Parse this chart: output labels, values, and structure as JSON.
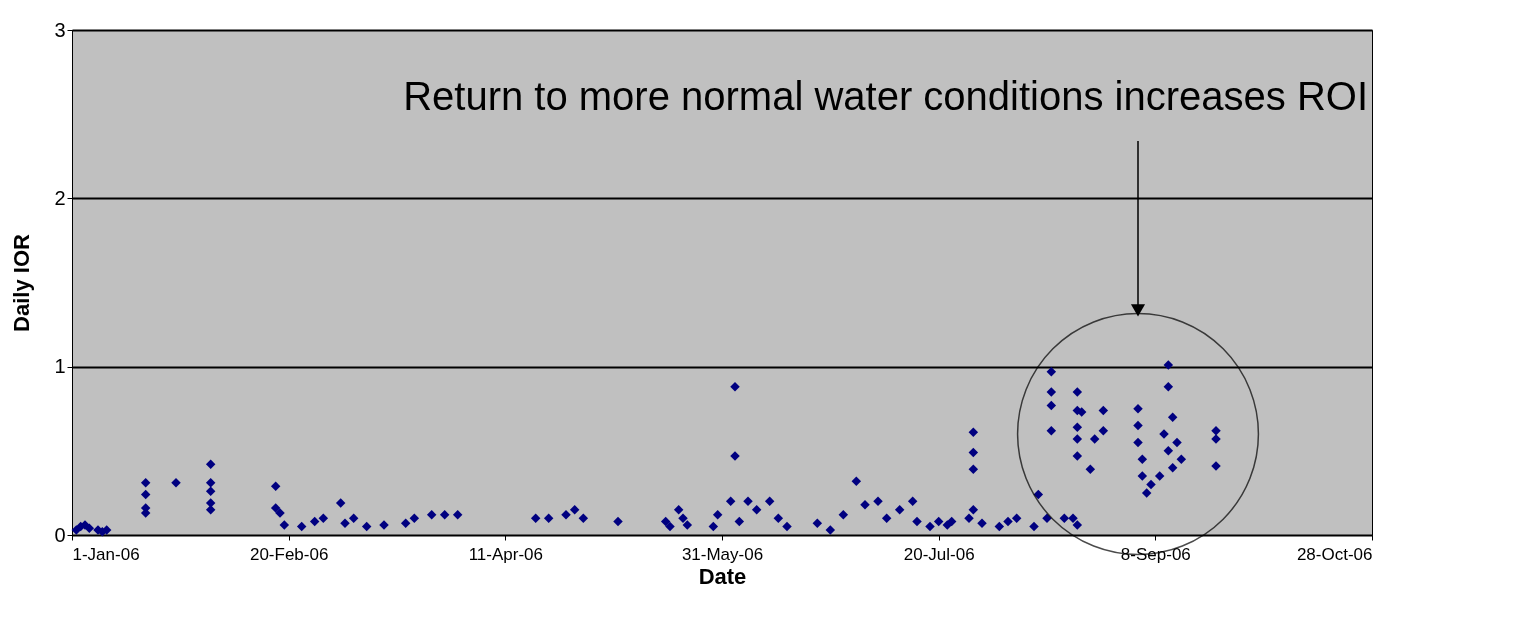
{
  "chart_data": {
    "type": "scatter",
    "xlabel": "Date",
    "ylabel": "Daily IOR",
    "x": [
      "2006-01-02",
      "2006-01-03",
      "2006-01-04",
      "2006-01-05",
      "2006-01-07",
      "2006-01-08",
      "2006-01-09",
      "2006-01-18",
      "2006-01-18",
      "2006-01-18",
      "2006-01-18",
      "2006-01-25",
      "2006-02-02",
      "2006-02-02",
      "2006-02-02",
      "2006-02-02",
      "2006-02-02",
      "2006-02-17",
      "2006-02-17",
      "2006-02-18",
      "2006-02-19",
      "2006-02-23",
      "2006-02-26",
      "2006-02-28",
      "2006-03-04",
      "2006-03-05",
      "2006-03-07",
      "2006-03-10",
      "2006-03-14",
      "2006-03-19",
      "2006-03-21",
      "2006-03-25",
      "2006-03-28",
      "2006-03-31",
      "2006-04-18",
      "2006-04-21",
      "2006-04-25",
      "2006-04-27",
      "2006-04-29",
      "2006-05-07",
      "2006-05-18",
      "2006-05-19",
      "2006-05-21",
      "2006-05-22",
      "2006-05-23",
      "2006-05-29",
      "2006-05-30",
      "2006-06-02",
      "2006-06-03",
      "2006-06-03",
      "2006-06-04",
      "2006-06-06",
      "2006-06-08",
      "2006-06-11",
      "2006-06-13",
      "2006-06-15",
      "2006-06-22",
      "2006-06-25",
      "2006-06-28",
      "2006-07-01",
      "2006-07-03",
      "2006-07-06",
      "2006-07-08",
      "2006-07-11",
      "2006-07-14",
      "2006-07-15",
      "2006-07-18",
      "2006-07-20",
      "2006-07-22",
      "2006-07-23",
      "2006-07-27",
      "2006-07-28",
      "2006-07-28",
      "2006-07-28",
      "2006-07-28",
      "2006-07-30",
      "2006-08-03",
      "2006-08-05",
      "2006-08-07",
      "2006-08-11",
      "2006-08-12",
      "2006-08-14",
      "2006-08-15",
      "2006-08-15",
      "2006-08-15",
      "2006-08-15",
      "2006-08-18",
      "2006-08-20",
      "2006-08-21",
      "2006-08-21",
      "2006-08-21",
      "2006-08-21",
      "2006-08-21",
      "2006-08-21",
      "2006-08-22",
      "2006-08-24",
      "2006-08-25",
      "2006-08-27",
      "2006-08-27",
      "2006-09-04",
      "2006-09-04",
      "2006-09-04",
      "2006-09-05",
      "2006-09-05",
      "2006-09-06",
      "2006-09-07",
      "2006-09-09",
      "2006-09-10",
      "2006-09-11",
      "2006-09-11",
      "2006-09-11",
      "2006-09-12",
      "2006-09-12",
      "2006-09-13",
      "2006-09-14",
      "2006-09-22",
      "2006-09-22",
      "2006-09-22"
    ],
    "series": [
      {
        "color": "#000080",
        "values": [
          0.03,
          0.05,
          0.06,
          0.04,
          0.03,
          0.02,
          0.03,
          0.31,
          0.24,
          0.16,
          0.13,
          0.31,
          0.42,
          0.31,
          0.26,
          0.19,
          0.15,
          0.29,
          0.16,
          0.13,
          0.06,
          0.05,
          0.08,
          0.1,
          0.19,
          0.07,
          0.1,
          0.05,
          0.06,
          0.07,
          0.1,
          0.12,
          0.12,
          0.12,
          0.1,
          0.1,
          0.12,
          0.15,
          0.1,
          0.08,
          0.08,
          0.05,
          0.15,
          0.1,
          0.06,
          0.05,
          0.12,
          0.2,
          0.88,
          0.47,
          0.08,
          0.2,
          0.15,
          0.2,
          0.1,
          0.05,
          0.07,
          0.03,
          0.12,
          0.32,
          0.18,
          0.2,
          0.1,
          0.15,
          0.2,
          0.08,
          0.05,
          0.08,
          0.06,
          0.08,
          0.1,
          0.61,
          0.49,
          0.39,
          0.15,
          0.07,
          0.05,
          0.08,
          0.1,
          0.05,
          0.24,
          0.1,
          0.97,
          0.85,
          0.77,
          0.62,
          0.1,
          0.1,
          0.06,
          0.85,
          0.74,
          0.64,
          0.57,
          0.47,
          0.73,
          0.39,
          0.57,
          0.74,
          0.62,
          0.75,
          0.65,
          0.55,
          0.45,
          0.35,
          0.25,
          0.3,
          0.35,
          0.6,
          1.01,
          0.88,
          0.5,
          0.7,
          0.4,
          0.55,
          0.45,
          0.62,
          0.57,
          0.41
        ]
      }
    ],
    "xlim": [
      "2006-01-01",
      "2006-10-28"
    ],
    "xticks": [
      {
        "value": "2006-01-01",
        "label": "1-Jan-06"
      },
      {
        "value": "2006-02-20",
        "label": "20-Feb-06"
      },
      {
        "value": "2006-04-11",
        "label": "11-Apr-06"
      },
      {
        "value": "2006-05-31",
        "label": "31-May-06"
      },
      {
        "value": "2006-07-20",
        "label": "20-Jul-06"
      },
      {
        "value": "2006-09-08",
        "label": "8-Sep-06"
      },
      {
        "value": "2006-10-28",
        "label": "28-Oct-06"
      }
    ],
    "ylim": [
      0,
      3
    ],
    "yticks": [
      0,
      1,
      2,
      3
    ],
    "grid": "y",
    "marker": "diamond",
    "annotations": [
      "Return to more normal water conditions increases ROI"
    ]
  }
}
